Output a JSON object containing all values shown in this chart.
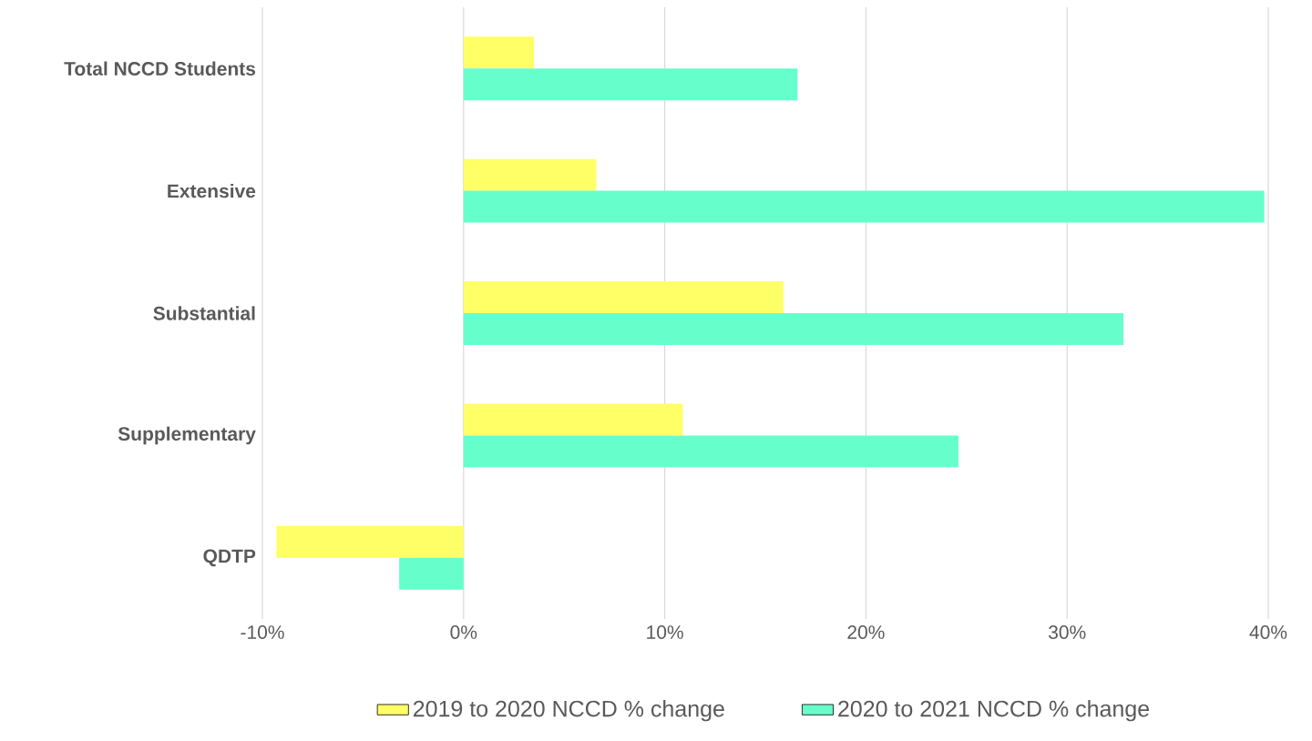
{
  "chart_data": {
    "type": "bar",
    "orientation": "horizontal",
    "categories": [
      "Total NCCD Students",
      "Extensive",
      "Substantial",
      "Supplementary",
      "QDTP"
    ],
    "series": [
      {
        "name": "2019 to 2020 NCCD % change",
        "color": "#ffff66",
        "values": [
          3.5,
          6.6,
          15.9,
          10.9,
          -9.3
        ]
      },
      {
        "name": "2020 to 2021 NCCD % change",
        "color": "#66ffcc",
        "values": [
          16.6,
          39.8,
          32.8,
          24.6,
          -3.2
        ]
      }
    ],
    "xlim": [
      -10,
      40
    ],
    "xticks": [
      {
        "value": -10,
        "label": "-10%"
      },
      {
        "value": 0,
        "label": "0%"
      },
      {
        "value": 10,
        "label": "10%"
      },
      {
        "value": 20,
        "label": "20%"
      },
      {
        "value": 30,
        "label": "30%"
      },
      {
        "value": 40,
        "label": "40%"
      }
    ],
    "grid": "x",
    "legend": "bottom"
  }
}
